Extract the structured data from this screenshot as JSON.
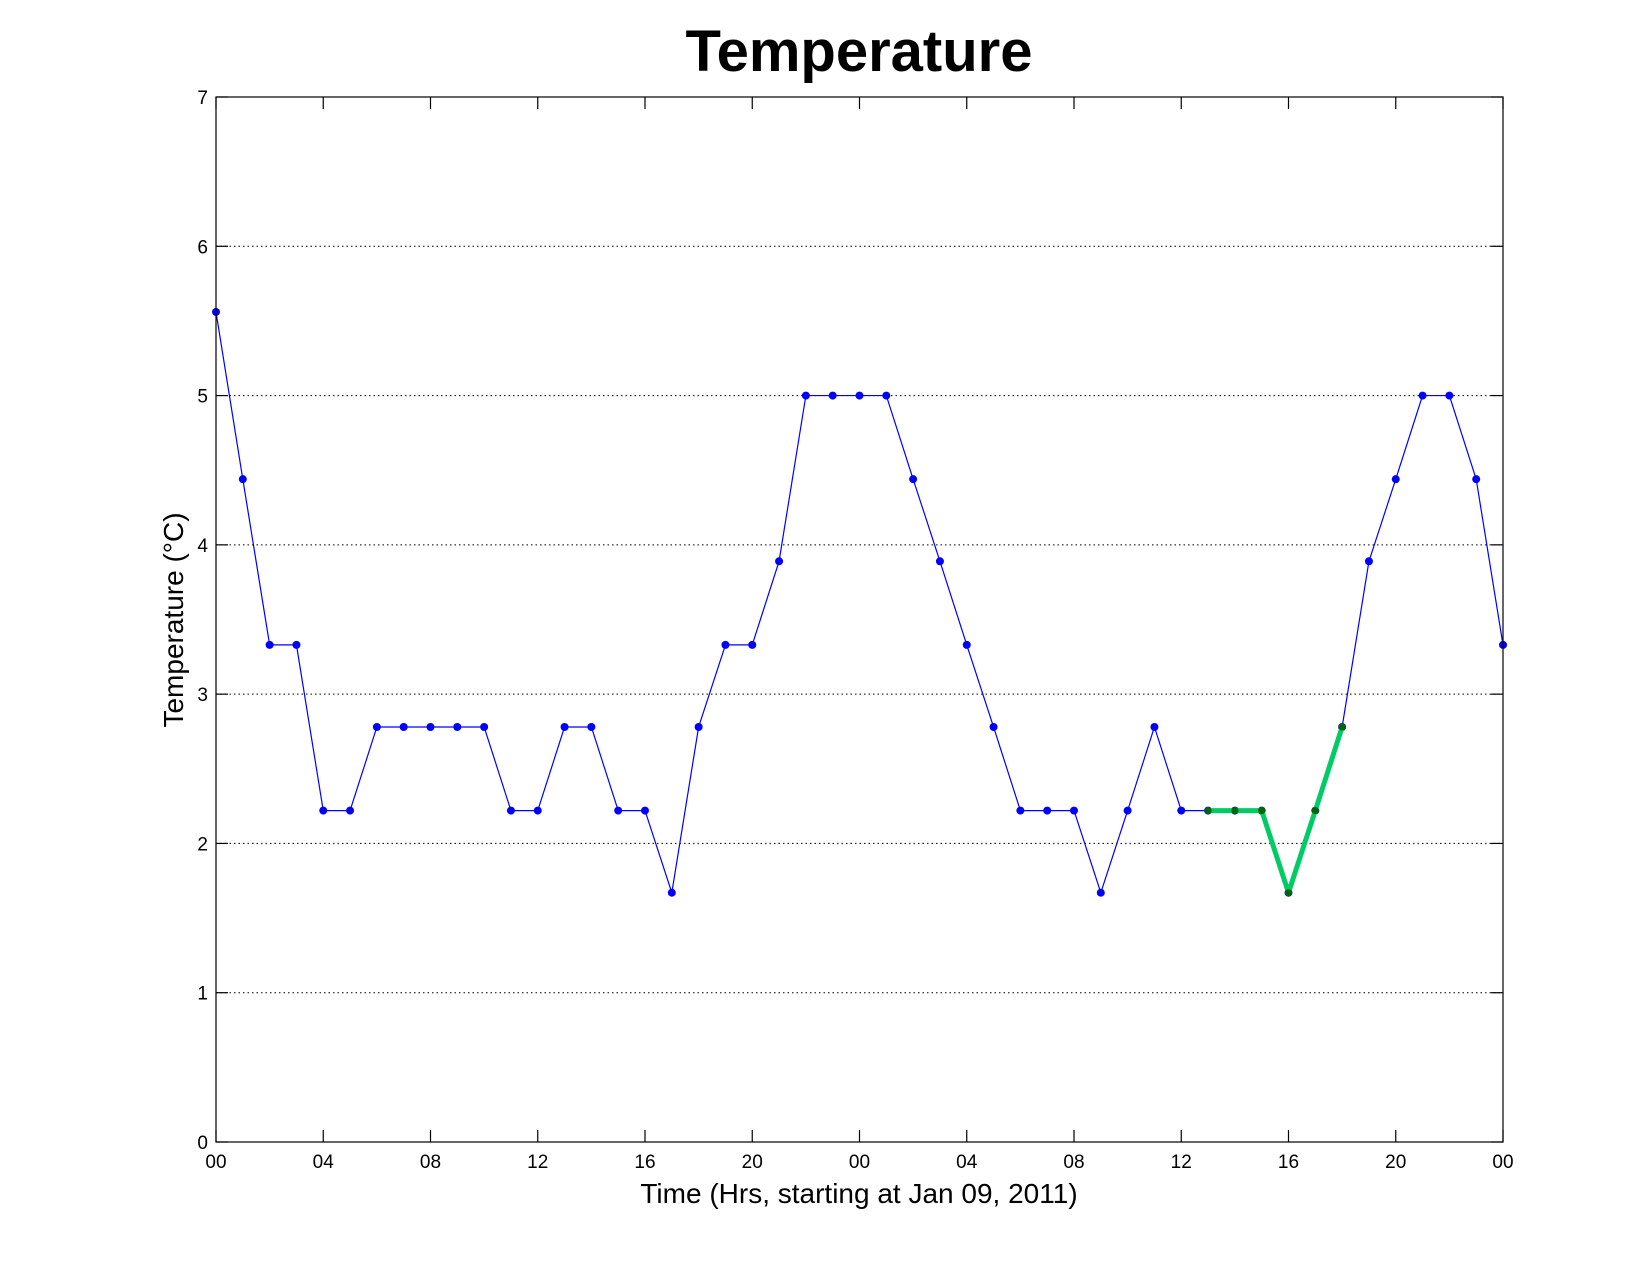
{
  "chart_data": {
    "type": "line",
    "title": "Temperature",
    "xlabel": "Time (Hrs, starting at Jan 09, 2011)",
    "ylabel": "Temperature (°C)",
    "xlim": [
      0,
      48
    ],
    "ylim": [
      0,
      7
    ],
    "grid": "y-dotted",
    "x_ticks": [
      0,
      4,
      8,
      12,
      16,
      20,
      24,
      28,
      32,
      36,
      40,
      44,
      48
    ],
    "x_tick_labels": [
      "00",
      "04",
      "08",
      "12",
      "16",
      "20",
      "00",
      "04",
      "08",
      "12",
      "16",
      "20",
      "00"
    ],
    "y_ticks": [
      0,
      1,
      2,
      3,
      4,
      5,
      6,
      7
    ],
    "y_tick_labels": [
      "0",
      "1",
      "2",
      "3",
      "4",
      "5",
      "6",
      "7"
    ],
    "series": [
      {
        "color": "#0000ff",
        "x": [
          0,
          1,
          2,
          3,
          4,
          5,
          6,
          7,
          8,
          9,
          10,
          11,
          12,
          13,
          14,
          15,
          16,
          17,
          18,
          19,
          20,
          21,
          22,
          23,
          24,
          25,
          26,
          27,
          28,
          29,
          30,
          31,
          32,
          33,
          34,
          35,
          36,
          37,
          38,
          39,
          40,
          41,
          42,
          43,
          44,
          45,
          46,
          47,
          48
        ],
        "values": [
          5.56,
          4.44,
          3.33,
          3.33,
          2.22,
          2.22,
          2.78,
          2.78,
          2.78,
          2.78,
          2.78,
          2.22,
          2.22,
          2.78,
          2.78,
          2.22,
          2.22,
          1.67,
          2.78,
          3.33,
          3.33,
          3.89,
          5.0,
          5.0,
          5.0,
          5.0,
          4.44,
          3.89,
          3.33,
          2.78,
          2.22,
          2.22,
          2.22,
          1.67,
          2.22,
          2.78,
          2.22,
          2.22,
          2.22,
          2.22,
          1.67,
          2.22,
          2.78,
          3.89,
          4.44,
          5.0,
          5.0,
          4.44,
          3.33
        ]
      },
      {
        "color": "#00cc66",
        "marker_color": "#006600",
        "x": [
          37,
          38,
          39,
          40,
          41,
          42
        ],
        "values": [
          2.22,
          2.22,
          2.22,
          1.67,
          2.22,
          2.78
        ]
      }
    ]
  }
}
